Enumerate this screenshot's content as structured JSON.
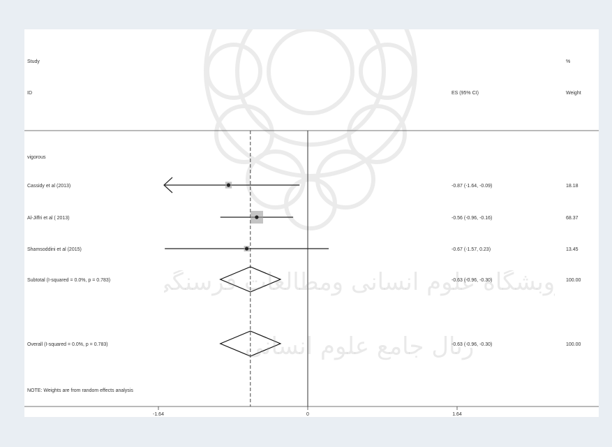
{
  "chart_data": {
    "type": "forest",
    "header": {
      "col1_line1": "Study",
      "col1_line2": "ID",
      "col2": "ES (95% CI)",
      "col3_line1": "%",
      "col3_line2": "Weight"
    },
    "xlim": [
      -1.64,
      1.64
    ],
    "xticks": [
      -1.64,
      0,
      1.64
    ],
    "xtick_labels": [
      "-1.64",
      "0",
      "1.64"
    ],
    "null_line": 0,
    "overall_dashed_line": -0.63,
    "subgroups": [
      {
        "label": "vigorous",
        "studies": [
          {
            "id": "Cassidy et al (2013)",
            "es": -0.87,
            "lower": -1.64,
            "upper": -0.09,
            "es_ci": "-0.87 (-1.64, -0.09)",
            "weight": "18.18",
            "w": 18.18,
            "arrow_left": true
          },
          {
            "id": "Al-Jiffri et al ( 2013)",
            "es": -0.56,
            "lower": -0.96,
            "upper": -0.16,
            "es_ci": "-0.56 (-0.96, -0.16)",
            "weight": "68.37",
            "w": 68.37,
            "arrow_left": false
          },
          {
            "id": "Shamsoddini et al (2015)",
            "es": -0.67,
            "lower": -1.57,
            "upper": 0.23,
            "es_ci": "-0.67 (-1.57, 0.23)",
            "weight": "13.45",
            "w": 13.45,
            "arrow_left": false
          }
        ],
        "subtotal": {
          "label": "Subtotal  (I-squared = 0.0%, p = 0.783)",
          "es": -0.63,
          "lower": -0.96,
          "upper": -0.3,
          "es_ci": "-0.63 (-0.96, -0.30)",
          "weight": "100.00"
        }
      }
    ],
    "overall": {
      "label": "Overall  (I-squared = 0.0%, p = 0.783)",
      "es": -0.63,
      "lower": -0.96,
      "upper": -0.3,
      "es_ci": "-0.63 (-0.96, -0.30)",
      "weight": "100.00"
    },
    "note": "NOTE: Weights are from random effects analysis"
  },
  "watermark": {
    "line1": "ژوبشگاه علوم انسانی ومطالعات فرسنگی",
    "line2": "رتال جامع علوم انسانی"
  }
}
